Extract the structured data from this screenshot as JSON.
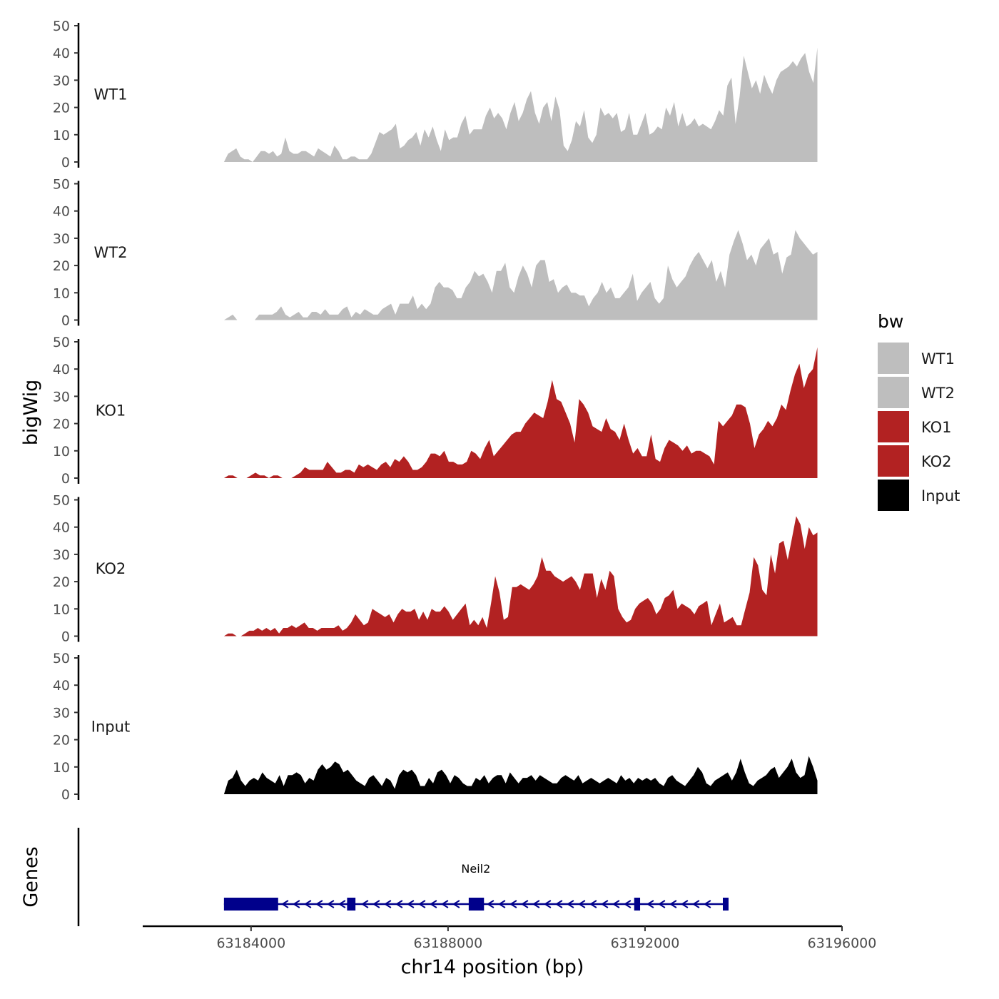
{
  "chart_data": {
    "type": "area",
    "ylabel": "bigWig",
    "xlabel": "chr14 position (bp)",
    "gene_track_label": "Genes",
    "ylim": [
      0,
      50
    ],
    "y_ticks": [
      0,
      10,
      20,
      30,
      40,
      50
    ],
    "x_domain": [
      63181800,
      63196000
    ],
    "x_ticks": [
      63184000,
      63188000,
      63192000,
      63196000
    ],
    "x_tick_labels": [
      "63184000",
      "63188000",
      "63192000",
      "63196000"
    ],
    "region": [
      63183450,
      63195500
    ],
    "legend": {
      "title": "bw",
      "items": [
        {
          "label": "WT1",
          "color": "#bebebe"
        },
        {
          "label": "WT2",
          "color": "#bebebe"
        },
        {
          "label": "KO1",
          "color": "#b22222"
        },
        {
          "label": "KO2",
          "color": "#b22222"
        },
        {
          "label": "Input",
          "color": "#000000"
        }
      ]
    },
    "series": [
      {
        "name": "WT1",
        "color": "#bebebe",
        "values": [
          0,
          3,
          4,
          5,
          2,
          1,
          1,
          0,
          2,
          4,
          4,
          3,
          4,
          2,
          3,
          9,
          4,
          3,
          3,
          4,
          4,
          3,
          2,
          5,
          4,
          3,
          2,
          6,
          4,
          1,
          1,
          2,
          2,
          1,
          1,
          1,
          3,
          7,
          11,
          10,
          11,
          12,
          14,
          5,
          6,
          8,
          9,
          11,
          6,
          12,
          9,
          13,
          8,
          4,
          12,
          8,
          9,
          9,
          14,
          17,
          10,
          12,
          12,
          12,
          17,
          20,
          16,
          18,
          16,
          12,
          18,
          22,
          15,
          18,
          23,
          26,
          18,
          14,
          20,
          22,
          15,
          24,
          19,
          6,
          4,
          8,
          15,
          13,
          19,
          9,
          7,
          10,
          20,
          17,
          18,
          16,
          18,
          11,
          12,
          18,
          10,
          10,
          14,
          18,
          10,
          11,
          13,
          12,
          20,
          17,
          22,
          13,
          18,
          13,
          14,
          16,
          13,
          14,
          13,
          12,
          15,
          19,
          17,
          28,
          31,
          14,
          24,
          39,
          33,
          27,
          30,
          25,
          32,
          28,
          25,
          30,
          33,
          34,
          35,
          37,
          35,
          38,
          40,
          33,
          29,
          42
        ]
      },
      {
        "name": "WT2",
        "color": "#bebebe",
        "values": [
          0,
          1,
          2,
          0,
          0,
          0,
          0,
          0,
          2,
          2,
          2,
          2,
          3,
          5,
          2,
          1,
          2,
          3,
          1,
          1,
          3,
          3,
          2,
          4,
          2,
          2,
          2,
          4,
          5,
          1,
          3,
          2,
          4,
          3,
          2,
          2,
          4,
          5,
          6,
          2,
          6,
          6,
          6,
          9,
          4,
          6,
          4,
          6,
          12,
          14,
          12,
          12,
          11,
          8,
          8,
          12,
          14,
          18,
          16,
          17,
          14,
          10,
          18,
          18,
          21,
          12,
          10,
          16,
          20,
          17,
          12,
          20,
          22,
          22,
          14,
          15,
          10,
          12,
          13,
          10,
          10,
          9,
          9,
          5,
          8,
          10,
          14,
          10,
          12,
          8,
          8,
          10,
          12,
          17,
          7,
          10,
          12,
          14,
          8,
          6,
          8,
          20,
          15,
          12,
          14,
          16,
          20,
          23,
          25,
          22,
          19,
          22,
          14,
          18,
          12,
          24,
          29,
          33,
          28,
          22,
          24,
          20,
          26,
          28,
          30,
          24,
          25,
          17,
          23,
          24,
          33,
          30,
          28,
          26,
          24,
          25
        ]
      },
      {
        "name": "KO1",
        "color": "#b22222",
        "values": [
          0,
          1,
          1,
          0,
          0,
          0,
          1,
          2,
          1,
          1,
          0,
          1,
          1,
          0,
          0,
          0,
          1,
          2,
          4,
          3,
          3,
          3,
          3,
          6,
          4,
          2,
          2,
          3,
          3,
          2,
          5,
          4,
          5,
          4,
          3,
          5,
          6,
          4,
          7,
          6,
          8,
          6,
          3,
          3,
          4,
          6,
          9,
          9,
          8,
          10,
          6,
          6,
          5,
          5,
          6,
          10,
          9,
          7,
          11,
          14,
          8,
          10,
          12,
          14,
          16,
          17,
          17,
          20,
          22,
          24,
          23,
          22,
          28,
          36,
          29,
          28,
          24,
          20,
          13,
          29,
          27,
          24,
          19,
          18,
          17,
          22,
          18,
          17,
          14,
          20,
          14,
          9,
          11,
          8,
          8,
          16,
          7,
          6,
          11,
          14,
          13,
          12,
          10,
          12,
          9,
          10,
          10,
          9,
          8,
          5,
          21,
          19,
          21,
          23,
          27,
          27,
          26,
          20,
          11,
          16,
          18,
          21,
          19,
          22,
          27,
          25,
          32,
          38,
          42,
          33,
          38,
          40,
          48
        ]
      },
      {
        "name": "KO2",
        "color": "#b22222",
        "values": [
          0,
          1,
          1,
          0,
          0,
          1,
          2,
          2,
          3,
          2,
          3,
          2,
          3,
          1,
          3,
          3,
          4,
          3,
          4,
          5,
          3,
          3,
          2,
          3,
          3,
          3,
          3,
          4,
          2,
          3,
          5,
          8,
          6,
          4,
          5,
          10,
          9,
          8,
          7,
          8,
          5,
          8,
          10,
          9,
          9,
          10,
          6,
          9,
          6,
          10,
          9,
          9,
          11,
          9,
          6,
          8,
          10,
          12,
          4,
          6,
          4,
          7,
          3,
          12,
          22,
          16,
          6,
          7,
          18,
          18,
          19,
          18,
          17,
          19,
          22,
          29,
          24,
          24,
          22,
          21,
          20,
          21,
          22,
          20,
          17,
          23,
          23,
          23,
          14,
          21,
          17,
          24,
          22,
          10,
          7,
          5,
          6,
          10,
          12,
          13,
          14,
          12,
          8,
          10,
          14,
          15,
          17,
          10,
          12,
          11,
          10,
          8,
          11,
          12,
          13,
          4,
          8,
          12,
          5,
          6,
          7,
          4,
          4,
          10,
          16,
          29,
          26,
          17,
          15,
          30,
          23,
          34,
          35,
          28,
          36,
          44,
          41,
          32,
          40,
          37,
          38
        ]
      },
      {
        "name": "Input",
        "color": "#000000",
        "values": [
          0,
          5,
          6,
          9,
          5,
          3,
          5,
          6,
          5,
          8,
          6,
          5,
          4,
          7,
          3,
          7,
          7,
          8,
          7,
          4,
          6,
          5,
          9,
          11,
          9,
          10,
          12,
          11,
          8,
          9,
          7,
          5,
          4,
          3,
          6,
          7,
          5,
          3,
          6,
          5,
          2,
          7,
          9,
          8,
          9,
          7,
          3,
          3,
          6,
          4,
          8,
          9,
          7,
          4,
          7,
          6,
          4,
          3,
          3,
          6,
          5,
          7,
          4,
          6,
          7,
          7,
          4,
          8,
          6,
          4,
          6,
          6,
          7,
          5,
          7,
          6,
          5,
          4,
          4,
          6,
          7,
          6,
          5,
          7,
          4,
          5,
          6,
          5,
          4,
          5,
          6,
          5,
          4,
          7,
          5,
          6,
          4,
          6,
          5,
          6,
          5,
          6,
          4,
          3,
          6,
          7,
          5,
          4,
          3,
          5,
          7,
          10,
          8,
          4,
          3,
          5,
          6,
          7,
          8,
          5,
          8,
          13,
          8,
          4,
          3,
          5,
          6,
          7,
          9,
          10,
          6,
          8,
          10,
          13,
          8,
          6,
          7,
          14,
          10,
          5
        ]
      }
    ],
    "genes": [
      {
        "name": "Neil2",
        "strand": "-",
        "start": 63183450,
        "end": 63193680,
        "exons": [
          [
            63183450,
            63184550
          ],
          [
            63185950,
            63186120
          ],
          [
            63188420,
            63188730
          ],
          [
            63191780,
            63191900
          ],
          [
            63193580,
            63193680
          ]
        ]
      }
    ]
  }
}
